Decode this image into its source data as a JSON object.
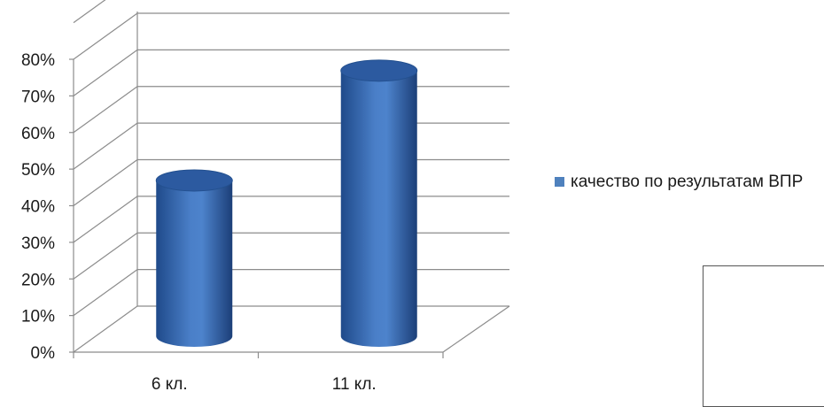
{
  "chart_data": {
    "type": "bar",
    "style": "3d-cylinder",
    "categories": [
      "6 кл.",
      "11 кл."
    ],
    "series": [
      {
        "name": "качество по результатам ВПР",
        "values": [
          0.44,
          0.74
        ]
      }
    ],
    "ylim": [
      0,
      0.8
    ],
    "yticks": [
      "0%",
      "10%",
      "20%",
      "30%",
      "40%",
      "50%",
      "60%",
      "70%",
      "80%"
    ],
    "grid": true,
    "legend": "right",
    "title": "",
    "xlabel": "",
    "ylabel": ""
  },
  "colors": {
    "bar": "#4a7fc8",
    "bar_dark": "#1f4a8a",
    "bar_top": "#2c5aa0",
    "grid": "#8c8c8c",
    "legend_swatch": "#4f81bd"
  }
}
